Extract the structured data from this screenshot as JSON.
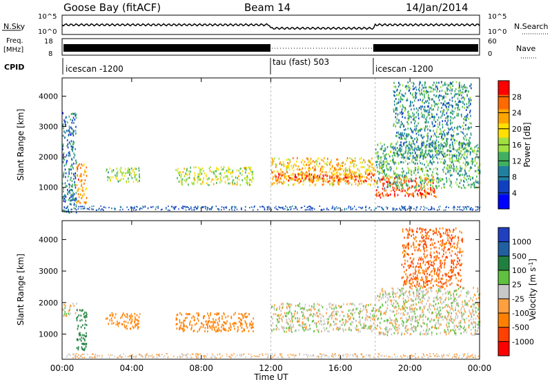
{
  "header": {
    "station": "Goose Bay (fitACF)",
    "beam": "Beam 14",
    "date": "14/Jan/2014"
  },
  "noise_panel": {
    "left_label": "N.Sky",
    "left_ticks": [
      "10^5",
      "10^0"
    ],
    "right_label": "N.Search",
    "right_ticks": [
      "10^5",
      "10^0"
    ]
  },
  "freq_panel": {
    "left_label_1": "Freq.",
    "left_label_2": "[MHz]",
    "left_ticks": [
      "18",
      "8"
    ],
    "right_label": "Nave",
    "right_ticks": [
      "60",
      "0"
    ]
  },
  "cpid_panel": {
    "label": "CPID",
    "segments": [
      "icescan -1200",
      "tau (fast) 503",
      "icescan -1200"
    ]
  },
  "chart_data": [
    {
      "type": "heatmap",
      "name": "Power",
      "ylabel": "Slant Range [km]",
      "yticks": [
        "4000",
        "3000",
        "2000",
        "1000"
      ],
      "ylim": [
        200,
        4600
      ],
      "xlim": [
        0,
        24
      ],
      "colorbar_label": "Power [dB]",
      "colorbar_ticks": [
        "28",
        "24",
        "20",
        "16",
        "12",
        "8",
        "4"
      ],
      "colorbar_colors": [
        "#ff0000",
        "#ff6a00",
        "#ffa500",
        "#ffe000",
        "#a0e040",
        "#40b060",
        "#2080a0",
        "#1040c0",
        "#0000ff"
      ],
      "echo_regions": [
        {
          "t0": 0.0,
          "t1": 0.8,
          "r0": 200,
          "r1": 3500,
          "value": 8
        },
        {
          "t0": 0.8,
          "t1": 1.4,
          "r0": 500,
          "r1": 1800,
          "value": 22
        },
        {
          "t0": 2.5,
          "t1": 4.5,
          "r0": 1200,
          "r1": 1700,
          "value": 14
        },
        {
          "t0": 6.5,
          "t1": 11.0,
          "r0": 1100,
          "r1": 1700,
          "value": 16
        },
        {
          "t0": 12.0,
          "t1": 18.0,
          "r0": 1100,
          "r1": 2000,
          "value": 20
        },
        {
          "t0": 12.2,
          "t1": 18.0,
          "r0": 1200,
          "r1": 1500,
          "value": 26
        },
        {
          "t0": 18.0,
          "t1": 21.5,
          "r0": 700,
          "r1": 1400,
          "value": 26
        },
        {
          "t0": 18.0,
          "t1": 24.0,
          "r0": 1000,
          "r1": 2500,
          "value": 12
        },
        {
          "t0": 19.0,
          "t1": 23.5,
          "r0": 2000,
          "r1": 4500,
          "value": 10
        }
      ]
    },
    {
      "type": "heatmap",
      "name": "Velocity",
      "ylabel": "Slant Range [km]",
      "yticks": [
        "4000",
        "3000",
        "2000",
        "1000"
      ],
      "ylim": [
        200,
        4600
      ],
      "xlim": [
        0,
        24
      ],
      "colorbar_label": "Velocity [m s^-1]",
      "colorbar_ticks": [
        "1000",
        "500",
        "100",
        "25",
        "-25",
        "-100",
        "-500",
        "-1000"
      ],
      "colorbar_colors": [
        "#2040c0",
        "#2060a0",
        "#208040",
        "#60c040",
        "#c8c8c8",
        "#ffa040",
        "#ff8000",
        "#ff4000",
        "#ff0000"
      ],
      "echo_regions": [
        {
          "t0": 0.0,
          "t1": 0.8,
          "r0": 1600,
          "r1": 2000,
          "value": 0
        },
        {
          "t0": 0.8,
          "t1": 1.4,
          "r0": 500,
          "r1": 1800,
          "value": 200
        },
        {
          "t0": 2.5,
          "t1": 4.5,
          "r0": 1200,
          "r1": 1700,
          "value": -100
        },
        {
          "t0": 6.5,
          "t1": 11.0,
          "r0": 1100,
          "r1": 1700,
          "value": -150
        },
        {
          "t0": 12.0,
          "t1": 18.0,
          "r0": 1100,
          "r1": 2000,
          "value": 0
        },
        {
          "t0": 18.0,
          "t1": 24.0,
          "r0": 1000,
          "r1": 2500,
          "value": 0
        },
        {
          "t0": 19.5,
          "t1": 23.0,
          "r0": 2500,
          "r1": 4400,
          "value": -300
        }
      ]
    }
  ],
  "xaxis": {
    "ticks": [
      "00:00",
      "04:00",
      "08:00",
      "12:00",
      "16:00",
      "20:00",
      "00:00"
    ],
    "label": "Time UT"
  }
}
